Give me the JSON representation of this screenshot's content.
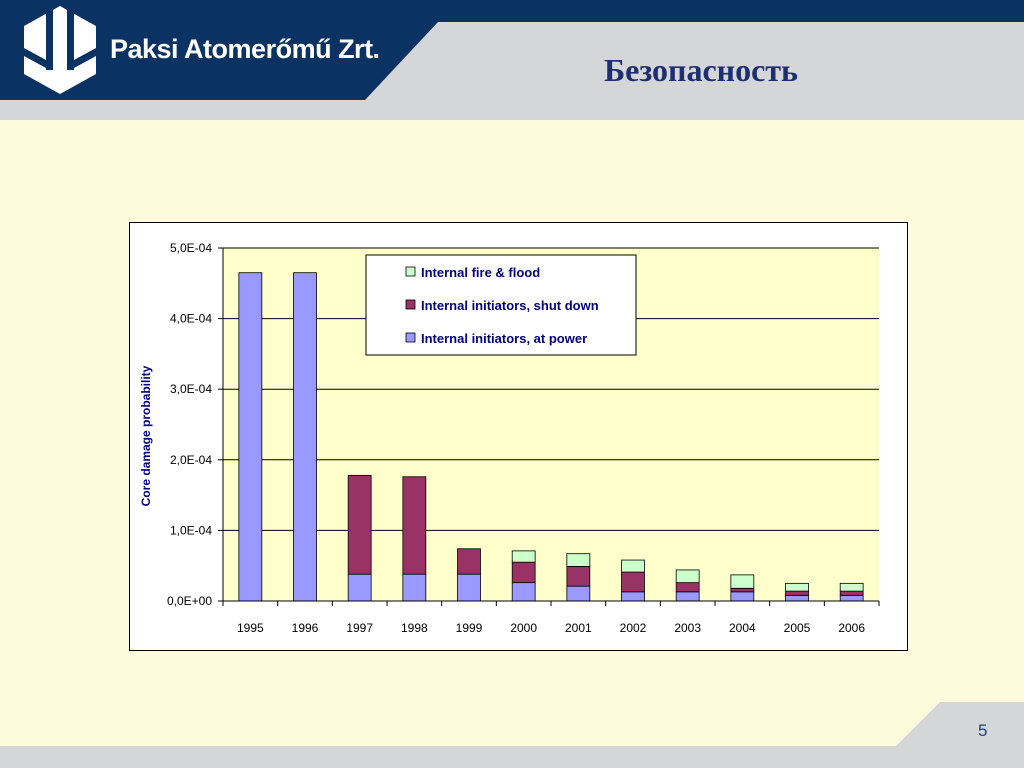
{
  "header": {
    "company_name": "Paksi Atomerőmű Zrt.",
    "title": "Безопасность"
  },
  "footer": {
    "page_number": "5"
  },
  "colors": {
    "header_navy": "#0a3364",
    "header_gray": "#d4d6d8",
    "background": "#fdfbdc",
    "plot_area": "#ffffcc",
    "at_power": "#9999ff",
    "shut_down": "#993366",
    "fire_flood": "#ccffcc",
    "title_text": "#1f2f6e"
  },
  "chart_data": {
    "type": "bar",
    "stacked": true,
    "categories": [
      "1995",
      "1996",
      "1997",
      "1998",
      "1999",
      "2000",
      "2001",
      "2002",
      "2003",
      "2004",
      "2005",
      "2006"
    ],
    "series": [
      {
        "name": "Internal initiators, at power",
        "color": "#9999ff",
        "values": [
          0.000465,
          0.000465,
          3.8e-05,
          3.8e-05,
          3.8e-05,
          2.6e-05,
          2.1e-05,
          1.3e-05,
          1.3e-05,
          1.3e-05,
          8e-06,
          8e-06
        ]
      },
      {
        "name": "Internal initiators, shut down",
        "color": "#993366",
        "values": [
          0,
          0,
          0.00014,
          0.000138,
          3.6e-05,
          2.9e-05,
          2.8e-05,
          2.8e-05,
          1.3e-05,
          5e-06,
          6e-06,
          6e-06
        ]
      },
      {
        "name": "Internal fire & flood",
        "color": "#ccffcc",
        "values": [
          0,
          0,
          0,
          0,
          0,
          1.6e-05,
          1.8e-05,
          1.7e-05,
          1.8e-05,
          1.9e-05,
          1.1e-05,
          1.1e-05
        ]
      }
    ],
    "ylabel": "Core damage probability",
    "xlabel": "",
    "ylim": [
      0,
      0.0005
    ],
    "yticks": [
      {
        "value": 0,
        "label": "0,0E+00"
      },
      {
        "value": 0.0001,
        "label": "1,0E-04"
      },
      {
        "value": 0.0002,
        "label": "2,0E-04"
      },
      {
        "value": 0.0003,
        "label": "3,0E-04"
      },
      {
        "value": 0.0004,
        "label": "4,0E-04"
      },
      {
        "value": 0.0005,
        "label": "5,0E-04"
      }
    ],
    "legend_order": [
      "Internal fire & flood",
      "Internal initiators, shut down",
      "Internal initiators, at power"
    ],
    "legend_position": "top-center",
    "grid": true
  }
}
